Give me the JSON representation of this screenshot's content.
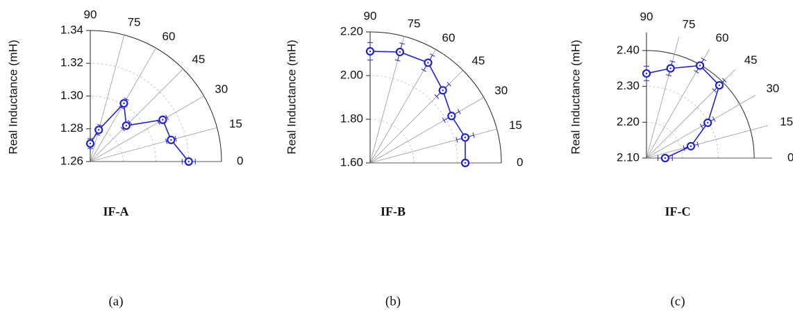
{
  "chart_data": [
    {
      "type": "polar",
      "title": "IF-A",
      "caption": "(a)",
      "ylabel": "Real Inductance (mH)",
      "x": [
        0,
        15,
        30,
        45,
        60,
        75,
        90
      ],
      "values": [
        1.32,
        1.311,
        1.311,
        1.291,
        1.301,
        1.28,
        1.271
      ],
      "errors": [
        0.004,
        0.003,
        0.003,
        0.003,
        0.003,
        0.003,
        0.003
      ],
      "color": "#1f1fd6",
      "xticks": [
        0,
        15,
        30,
        45,
        60,
        75,
        90
      ],
      "ylim": [
        1.26,
        1.34
      ],
      "yticks": [
        1.26,
        1.28,
        {
          "value": 1.3,
          "label": "1.30"
        },
        1.32,
        1.34
      ],
      "grid": true
    },
    {
      "type": "polar",
      "title": "IF-B",
      "caption": "(b)",
      "ylabel": "Real Inductance (mH)",
      "x": [
        0,
        15,
        30,
        45,
        60,
        75,
        90
      ],
      "values": [
        2.035,
        2.05,
        2.03,
        2.07,
        2.13,
        2.126,
        2.111
      ],
      "errors": [
        0.01,
        0.04,
        0.04,
        0.04,
        0.04,
        0.04,
        0.04
      ],
      "color": "#1f1fd6",
      "xticks": [
        0,
        15,
        30,
        45,
        60,
        75,
        90
      ],
      "ylim": [
        1.6,
        2.2
      ],
      "yticks": [
        {
          "value": 1.6,
          "label": "1.60"
        },
        {
          "value": 1.8,
          "label": "1.80"
        },
        {
          "value": 2.0,
          "label": "2.00"
        },
        {
          "value": 2.2,
          "label": "2.20"
        }
      ],
      "grid": true
    },
    {
      "type": "polar",
      "title": "IF-C",
      "caption": "(c)",
      "ylabel": "Real Inductance (mH)",
      "x": [
        0,
        15,
        30,
        45,
        60,
        75,
        90
      ],
      "values": [
        2.152,
        2.228,
        2.297,
        2.387,
        2.398,
        2.359,
        2.336
      ],
      "errors": [
        0.02,
        0.02,
        0.02,
        0.02,
        0.02,
        0.02,
        0.02
      ],
      "color": "#1f1fd6",
      "xticks": [
        0,
        15,
        30,
        45,
        60,
        75,
        90
      ],
      "ylim": [
        2.1,
        2.45
      ],
      "yticks": [
        {
          "value": 2.1,
          "label": "2.10"
        },
        {
          "value": 2.2,
          "label": "2.20"
        },
        {
          "value": 2.3,
          "label": "2.30"
        },
        {
          "value": 2.4,
          "label": "2.40"
        }
      ],
      "grid": true
    }
  ]
}
